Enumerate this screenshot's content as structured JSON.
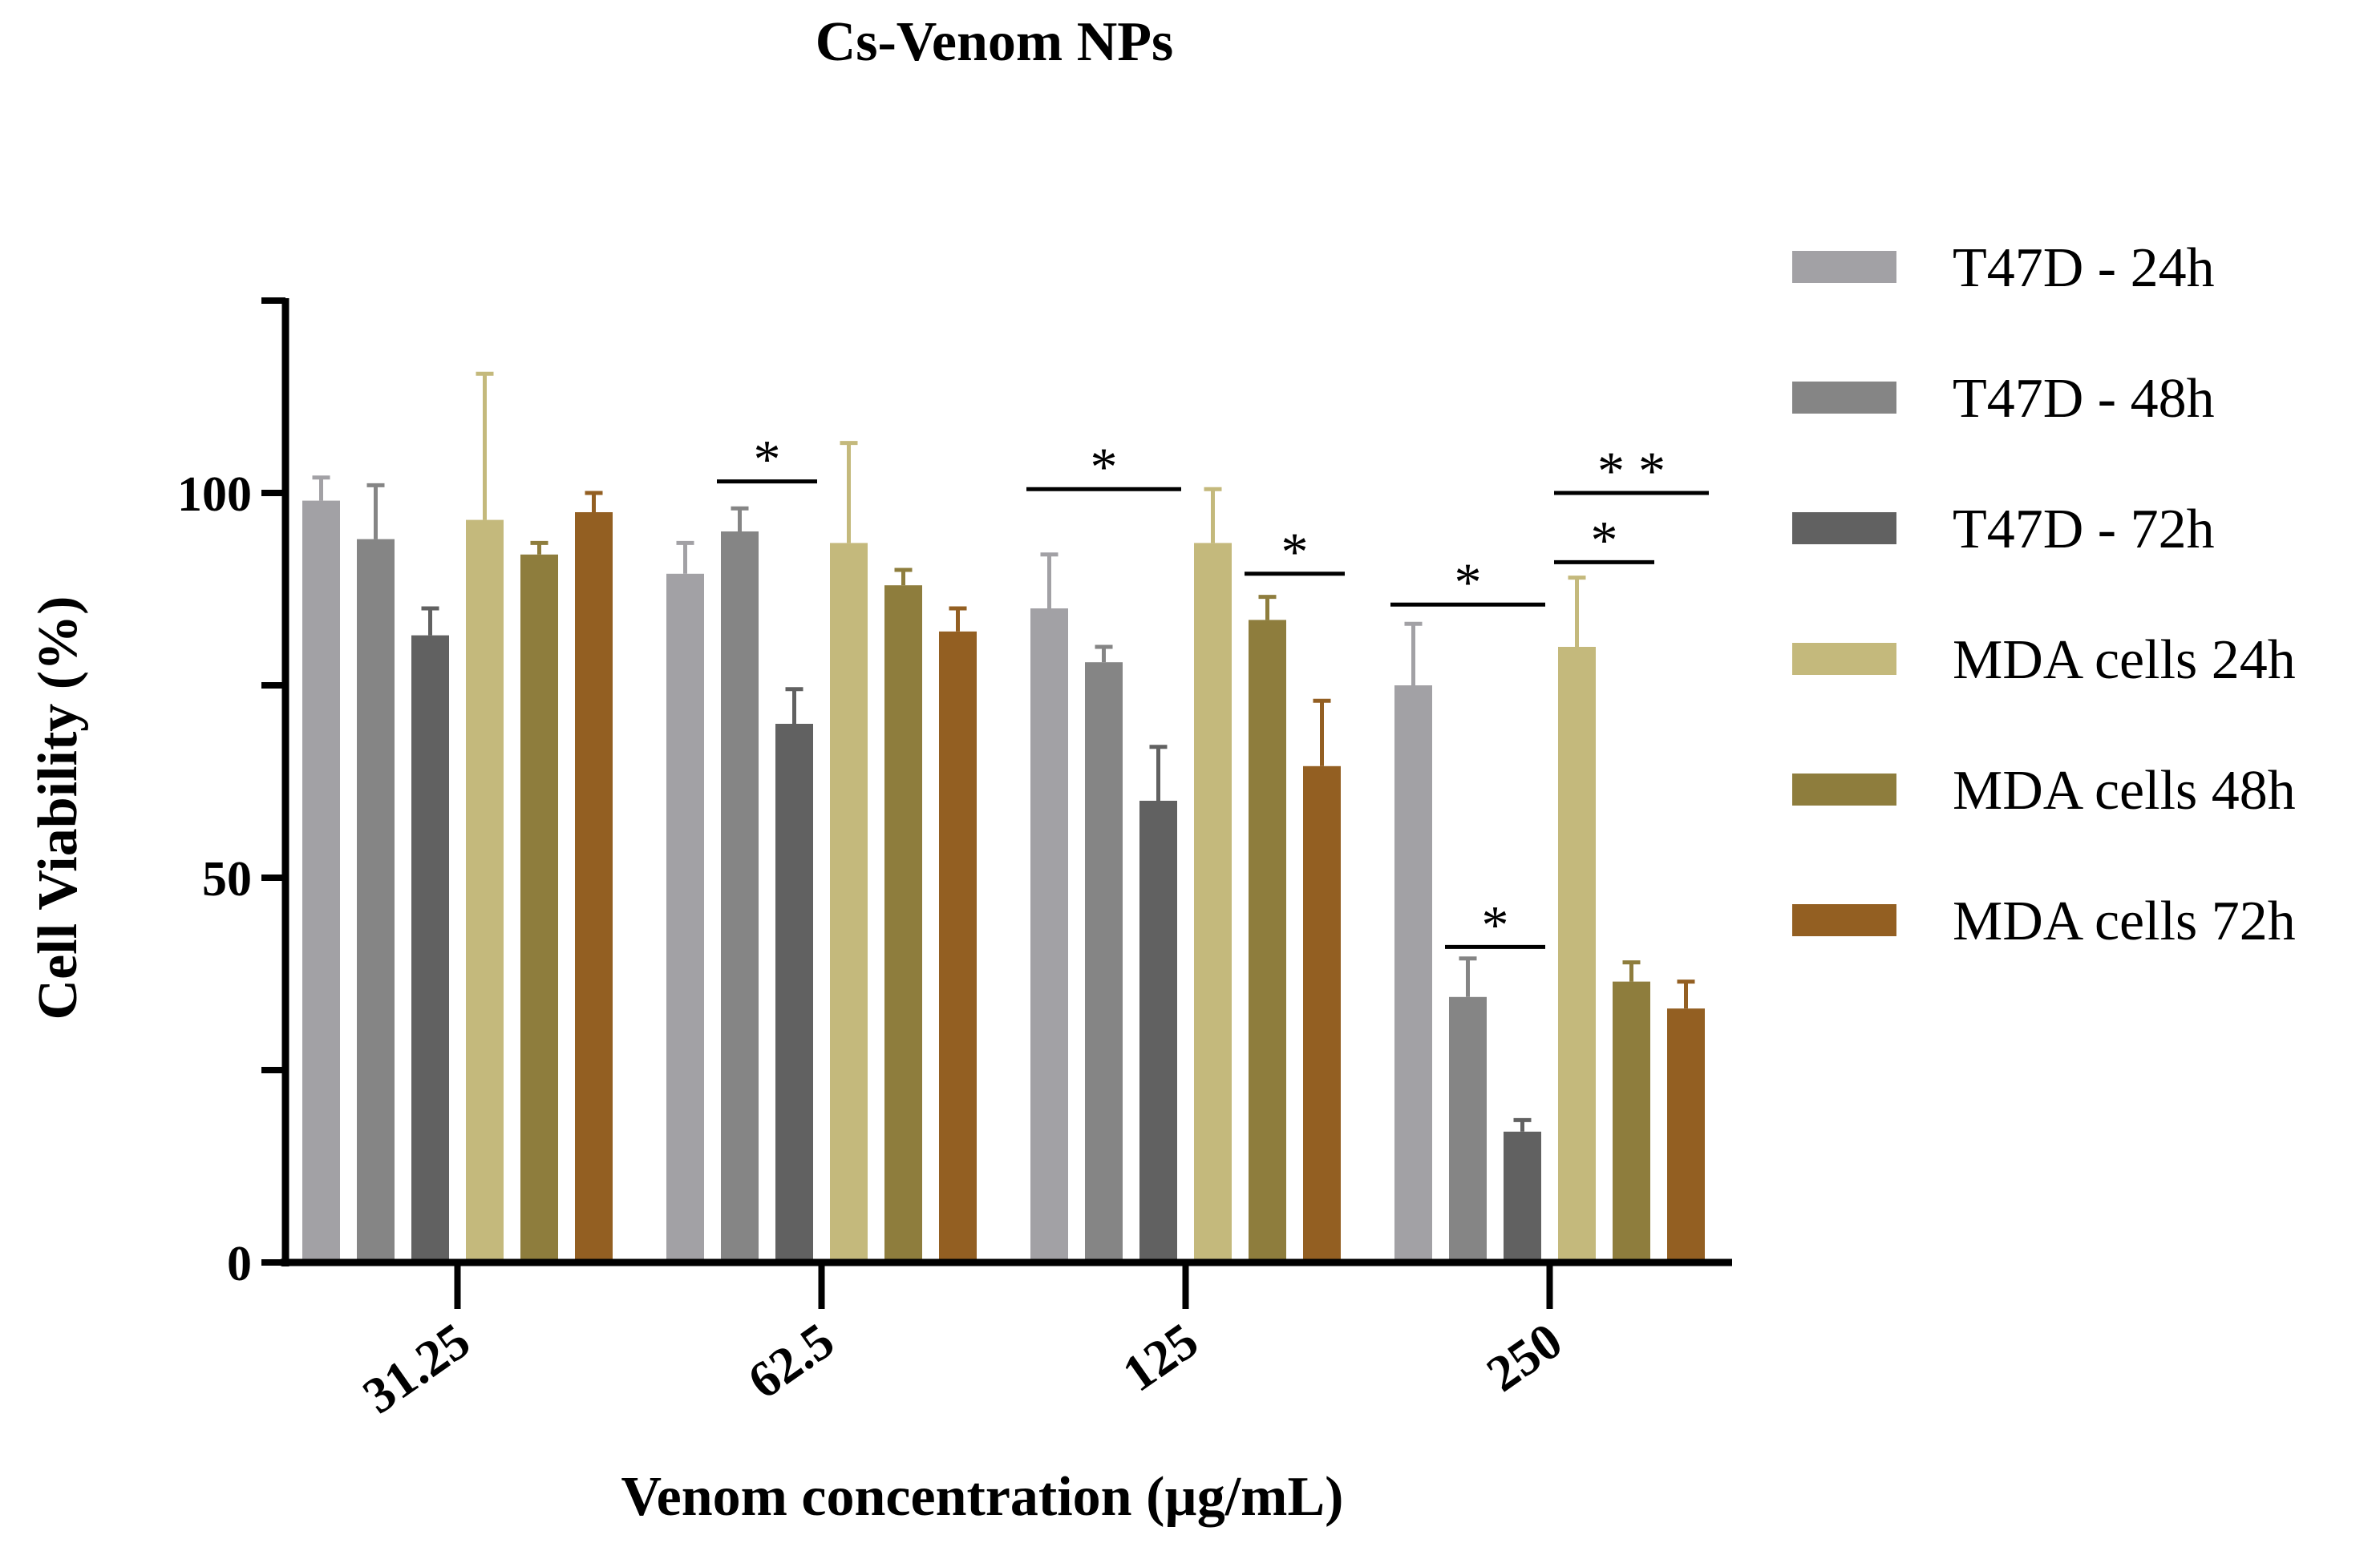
{
  "chart_data": {
    "type": "bar",
    "title": "Cs-Venom NPs",
    "xlabel": "Venom concentration (µg/mL)",
    "ylabel": "Cell Viability (%)",
    "ylim": [
      0,
      125
    ],
    "yticks": [
      0,
      50,
      100
    ],
    "yticks_labels": [
      "0",
      "50",
      "100"
    ],
    "y_minor_ticks": [
      25,
      75,
      125
    ],
    "grid": false,
    "legend_position": "right",
    "categories": [
      "31.25",
      "62.5",
      "125",
      "250"
    ],
    "series": [
      {
        "name": "T47D - 24h",
        "color": "#a2a1a5",
        "values": [
          99,
          89.5,
          85,
          75
        ],
        "errors": [
          3,
          4,
          7,
          8
        ]
      },
      {
        "name": "T47D - 48h",
        "color": "#858585",
        "values": [
          94,
          95,
          78,
          34.5
        ],
        "errors": [
          7,
          3,
          2,
          5
        ]
      },
      {
        "name": "T47D - 72h",
        "color": "#616161",
        "values": [
          81.5,
          70,
          60,
          17
        ],
        "errors": [
          3.5,
          4.5,
          7,
          1.5
        ]
      },
      {
        "name": "MDA cells 24h",
        "color": "#c4b97c",
        "values": [
          96.5,
          93.5,
          93.5,
          80
        ],
        "errors": [
          19,
          13,
          7,
          9
        ]
      },
      {
        "name": "MDA cells 48h",
        "color": "#8e7d3d",
        "values": [
          92,
          88,
          83.5,
          36.5
        ],
        "errors": [
          1.5,
          2,
          3,
          2.5
        ]
      },
      {
        "name": "MDA cells 72h",
        "color": "#935f22",
        "values": [
          97.5,
          82,
          64.5,
          33
        ],
        "errors": [
          2.5,
          3,
          8.5,
          3.5
        ]
      }
    ],
    "annotations": [
      {
        "text": "*",
        "category": 1,
        "from_series": 1,
        "to_series": 2,
        "y": 101.5
      },
      {
        "text": "*",
        "category": 2,
        "from_series": 0,
        "to_series": 2,
        "y": 100.5
      },
      {
        "text": "*",
        "category": 2,
        "from_series": 4,
        "to_series": 5,
        "y": 89.5
      },
      {
        "text": "*",
        "category": 3,
        "from_series": 0,
        "to_series": 2,
        "y": 85.5
      },
      {
        "text": "*",
        "category": 3,
        "from_series": 1,
        "to_series": 2,
        "y": 41
      },
      {
        "text": "*",
        "category": 3,
        "from_series": 3,
        "to_series": 4,
        "y": 91
      },
      {
        "text": "* *",
        "category": 3,
        "from_series": 3,
        "to_series": 5,
        "y": 100
      }
    ]
  }
}
